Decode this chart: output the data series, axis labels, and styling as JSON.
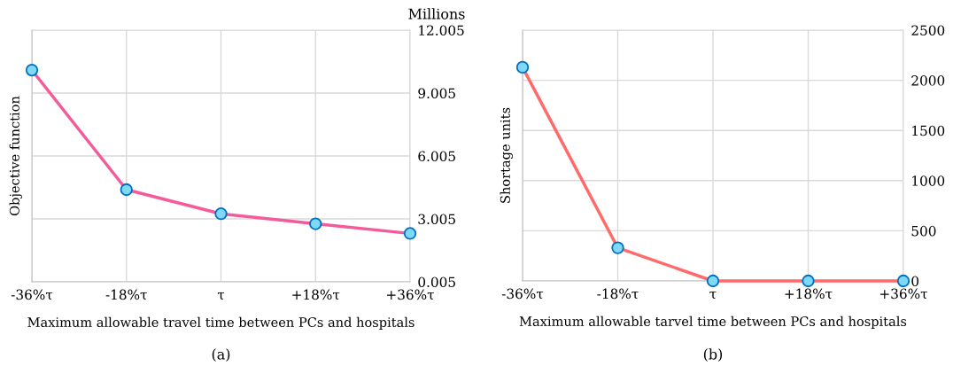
{
  "chart_data": [
    {
      "type": "line",
      "xlabel": "Maximum allowable travel time between PCs and hospitals",
      "ylabel": "Objective function",
      "categories": [
        "-36%τ",
        "-18%τ",
        "τ",
        "+18%τ",
        "+36%τ"
      ],
      "series": [
        {
          "color": "#f45b9a",
          "values": [
            10.1,
            4.4,
            3.25,
            2.77,
            2.31
          ]
        }
      ],
      "ylim": [
        0.005,
        12.005
      ],
      "yticks": [
        0.005,
        3.005,
        6.005,
        9.005,
        12.005
      ],
      "grid": true,
      "marker": "circle",
      "line_style": "solid",
      "annotations": [
        "Millions",
        "(a)"
      ]
    },
    {
      "type": "line",
      "xlabel": "Maximum allowable tarvel time between PCs and hospitals",
      "ylabel": "Shortage units",
      "categories": [
        "-36%τ",
        "-18%τ",
        "τ",
        "+18%τ",
        "+36%τ"
      ],
      "series": [
        {
          "color": "#ff6b6b",
          "values": [
            2130,
            330,
            0,
            0,
            0
          ]
        }
      ],
      "ylim": [
        0,
        2500
      ],
      "yticks": [
        0,
        500,
        1000,
        1500,
        2000,
        2500
      ],
      "grid": true,
      "marker": "circle",
      "line_style": "solid",
      "annotations": [
        "(b)"
      ]
    }
  ]
}
